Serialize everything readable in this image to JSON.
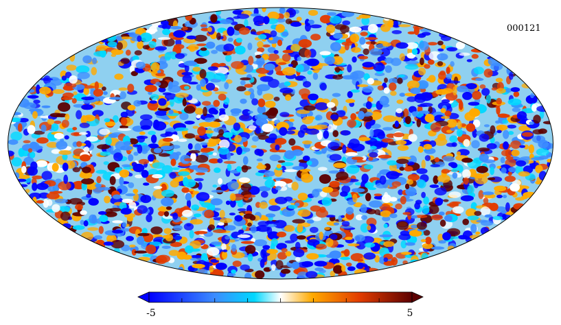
{
  "map": {
    "label": "000121",
    "projection": "mollweide",
    "colormap": [
      "#0000ff",
      "#3c8cff",
      "#00d8ff",
      "#ffffff",
      "#ffaa00",
      "#e23c00",
      "#5c0000"
    ]
  },
  "colorbar": {
    "min_label": "-5",
    "max_label": "5",
    "min": -5,
    "max": 5
  }
}
